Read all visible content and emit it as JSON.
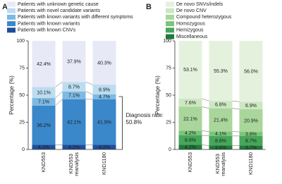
{
  "chart_data": [
    {
      "type": "bar",
      "stacked": true,
      "panel": "A",
      "ylabel": "Percentage (%)",
      "categories": [
        "KND553",
        "KND553 reanalysis",
        "KND1180"
      ],
      "ylim": [
        0,
        100
      ],
      "yticks": [
        0,
        25,
        50,
        75,
        100
      ],
      "annotation": [
        "Diagnosis rate:",
        "50.8%"
      ],
      "series": [
        {
          "name": "Patients with known CNVs",
          "color": "#1f4e9a",
          "values": [
            4.2,
            4.2,
            4.2
          ],
          "value_labels": [
            "4.2%",
            "4.2%",
            "4.2%"
          ]
        },
        {
          "name": "Patients with known variants",
          "color": "#3a87c9",
          "values": [
            36.2,
            42.1,
            41.9
          ],
          "value_labels": [
            "36.2%",
            "42.1%",
            "41.9%"
          ]
        },
        {
          "name": "Patients with known variants with different symptoms",
          "color": "#7db9e2",
          "values": [
            7.1,
            7.1,
            4.7
          ],
          "value_labels": [
            "7.1%",
            "7.1%",
            "4.7%"
          ]
        },
        {
          "name": "Patients with novel candidate variants",
          "color": "#bcdcf0",
          "values": [
            10.1,
            8.7,
            8.9
          ],
          "value_labels": [
            "10.1%",
            "8.7%",
            "8.9%"
          ]
        },
        {
          "name": "Patients with unknown genetic cause",
          "color": "#e7e9f6",
          "values": [
            42.4,
            37.9,
            40.3
          ],
          "value_labels": [
            "42.4%",
            "37.9%",
            "40.3%"
          ]
        }
      ]
    },
    {
      "type": "bar",
      "stacked": true,
      "panel": "B",
      "ylabel": "Percentage (%)",
      "categories": [
        "KND553",
        "KND553 reanalysis",
        "KND1180"
      ],
      "ylim": [
        0,
        100
      ],
      "yticks": [
        0,
        25,
        50,
        75,
        100
      ],
      "series": [
        {
          "name": "Miscellaneous",
          "color": "#1f7a3a",
          "values": [
            4.2,
            3.6,
            3.7
          ],
          "value_labels": [
            "4.2%",
            "3.6%",
            "3.7%"
          ]
        },
        {
          "name": "Hemizygous",
          "color": "#46a75a",
          "values": [
            8.8,
            8.8,
            8.7
          ],
          "value_labels": [
            "8.8%",
            "8.8%",
            "8.7%"
          ]
        },
        {
          "name": "Homozygous",
          "color": "#7cc47b",
          "values": [
            4.2,
            4.1,
            3.8
          ],
          "value_labels": [
            "4.2%",
            "4.1%",
            "3.8%"
          ]
        },
        {
          "name": "Compound heterozygous",
          "color": "#a9d69b",
          "values": [
            22.1,
            21.4,
            20.9
          ],
          "value_labels": [
            "22.1%",
            "21.4%",
            "20.9%"
          ]
        },
        {
          "name": "De novo CNV",
          "color": "#cce7c1",
          "values": [
            7.6,
            6.8,
            6.9
          ],
          "value_labels": [
            "7.6%",
            "6.8%",
            "6.9%"
          ]
        },
        {
          "name": "De novo SNVs/indels",
          "color": "#e4f2dd",
          "values": [
            53.1,
            55.3,
            56.0
          ],
          "value_labels": [
            "53.1%",
            "55.3%",
            "56.0%"
          ]
        }
      ]
    }
  ]
}
